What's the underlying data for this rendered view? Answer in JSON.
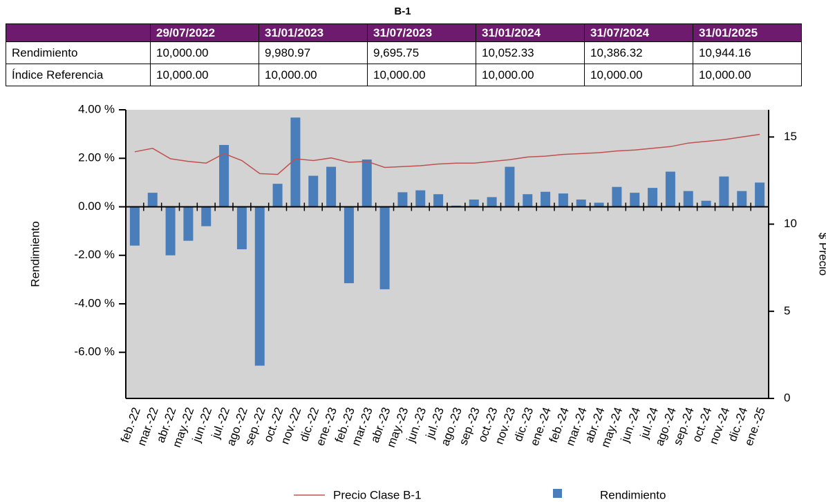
{
  "table": {
    "title": "B-1",
    "headers": [
      "29/07/2022",
      "31/01/2023",
      "31/07/2023",
      "31/01/2024",
      "31/07/2024",
      "31/01/2025"
    ],
    "rows": [
      [
        "Rendimiento",
        "10,000.00",
        "9,980.97",
        "9,695.75",
        "10,052.33",
        "10,386.32",
        "10,944.16"
      ],
      [
        "Índice Referencia",
        "10,000.00",
        "10,000.00",
        "10,000.00",
        "10,000.00",
        "10,000.00",
        "10,000.00"
      ]
    ]
  },
  "chart_data": {
    "type": "bar",
    "ylabel": "Rendimiento",
    "y2label": "$ Precio",
    "categories": [
      "feb.-22",
      "mar.-22",
      "abr.-22",
      "may.-22",
      "jun.-22",
      "jul.-22",
      "ago.-22",
      "sep.-22",
      "oct.-22",
      "nov.-22",
      "dic.-22",
      "ene.-23",
      "feb.-23",
      "mar.-23",
      "abr.-23",
      "may.-23",
      "jun.-23",
      "jul.-23",
      "ago.-23",
      "sep.-23",
      "oct.-23",
      "nov.-23",
      "dic.-23",
      "ene.-24",
      "feb.-24",
      "mar.-24",
      "abr.-24",
      "may.-24",
      "jun.-24",
      "jul.-24",
      "ago.-24",
      "sep.-24",
      "oct.-24",
      "nov.-24",
      "dic.-24",
      "ene.-25"
    ],
    "series": [
      {
        "name": "Precio Clase B-1",
        "type": "line",
        "axis": "y2",
        "color": "#c0504d",
        "values": [
          14.15,
          14.35,
          13.75,
          13.6,
          13.5,
          14.05,
          13.65,
          12.9,
          12.85,
          13.75,
          13.65,
          13.8,
          13.55,
          13.6,
          13.25,
          13.3,
          13.35,
          13.45,
          13.5,
          13.5,
          13.6,
          13.7,
          13.85,
          13.9,
          14.0,
          14.05,
          14.1,
          14.2,
          14.25,
          14.35,
          14.45,
          14.65,
          14.75,
          14.85,
          15.0,
          15.15
        ]
      },
      {
        "name": "Rendimiento",
        "type": "bar",
        "color": "#4a7ebb",
        "values": [
          -1.6,
          0.58,
          -2.0,
          -1.4,
          -0.8,
          2.55,
          -1.75,
          -6.55,
          0.95,
          3.68,
          1.28,
          1.65,
          -3.15,
          1.95,
          -3.4,
          0.6,
          0.68,
          0.52,
          0.05,
          0.3,
          0.4,
          1.65,
          0.52,
          0.62,
          0.55,
          0.3,
          0.17,
          0.82,
          0.58,
          0.78,
          1.45,
          0.65,
          0.25,
          1.25,
          0.65,
          1.0
        ]
      }
    ],
    "ylim": [
      -7.9,
      4.0
    ],
    "yticks": [
      {
        "value": 4,
        "label": "4.00 %"
      },
      {
        "value": 2,
        "label": "2.00 %"
      },
      {
        "value": 0,
        "label": "0.00 %"
      },
      {
        "value": -2,
        "label": "-2.00 %"
      },
      {
        "value": -4,
        "label": "-4.00 %"
      },
      {
        "value": -6,
        "label": "-6.00 %"
      }
    ],
    "y2lim": [
      0,
      16.56
    ],
    "y2ticks": [
      0,
      5,
      10,
      15
    ]
  }
}
